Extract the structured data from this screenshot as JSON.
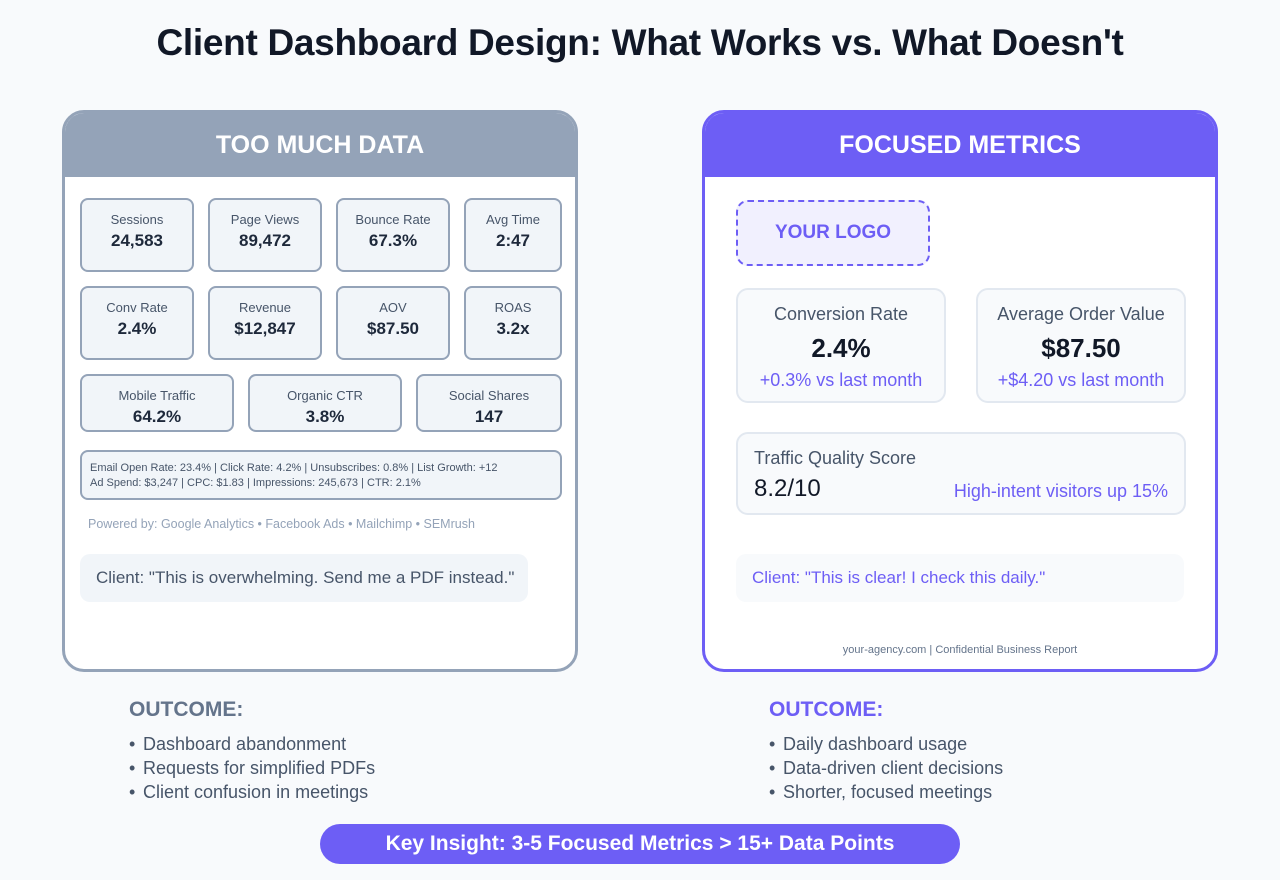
{
  "title": "Client Dashboard Design: What Works vs. What Doesn't",
  "left_panel": {
    "header": "TOO MUCH DATA",
    "metrics": [
      {
        "label": "Sessions",
        "value": "24,583"
      },
      {
        "label": "Page Views",
        "value": "89,472"
      },
      {
        "label": "Bounce Rate",
        "value": "67.3%"
      },
      {
        "label": "Avg Time",
        "value": "2:47"
      },
      {
        "label": "Conv Rate",
        "value": "2.4%"
      },
      {
        "label": "Revenue",
        "value": "$12,847"
      },
      {
        "label": "AOV",
        "value": "$87.50"
      },
      {
        "label": "ROAS",
        "value": "3.2x"
      },
      {
        "label": "Mobile Traffic",
        "value": "64.2%"
      },
      {
        "label": "Organic CTR",
        "value": "3.8%"
      },
      {
        "label": "Social Shares",
        "value": "147"
      }
    ],
    "dense_lines": [
      "Email Open Rate: 23.4% | Click Rate: 4.2% | Unsubscribes: 0.8% | List Growth: +12",
      "Ad Spend: $3,247 | CPC: $1.83 | Impressions: 245,673 | CTR: 2.1%"
    ],
    "powered_by": "Powered by: Google Analytics • Facebook Ads • Mailchimp • SEMrush",
    "client_quote": "Client: \"This is overwhelming. Send me a PDF instead.\""
  },
  "right_panel": {
    "header": "FOCUSED METRICS",
    "logo": "YOUR LOGO",
    "cards": [
      {
        "label": "Conversion Rate",
        "value": "2.4%",
        "change": "+0.3% vs last month"
      },
      {
        "label": "Average Order Value",
        "value": "$87.50",
        "change": "+$4.20 vs last month"
      }
    ],
    "traffic_quality": {
      "label": "Traffic Quality Score",
      "value": "8.2/10",
      "note": "High-intent visitors up 15%"
    },
    "client_quote": "Client: \"This is clear! I check this daily.\"",
    "footer": "your-agency.com | Confidential Business Report"
  },
  "outcomes": {
    "left": {
      "title": "OUTCOME:",
      "items": [
        "Dashboard abandonment",
        "Requests for simplified PDFs",
        "Client confusion in meetings"
      ]
    },
    "right": {
      "title": "OUTCOME:",
      "items": [
        "Daily dashboard usage",
        "Data-driven client decisions",
        "Shorter, focused meetings"
      ]
    }
  },
  "bullet": "•",
  "insight": "Key Insight: 3-5 Focused Metrics > 15+ Data Points",
  "colors": {
    "accent": "#6d5ef5",
    "muted": "#94a3b8",
    "text": "#1e293b"
  }
}
